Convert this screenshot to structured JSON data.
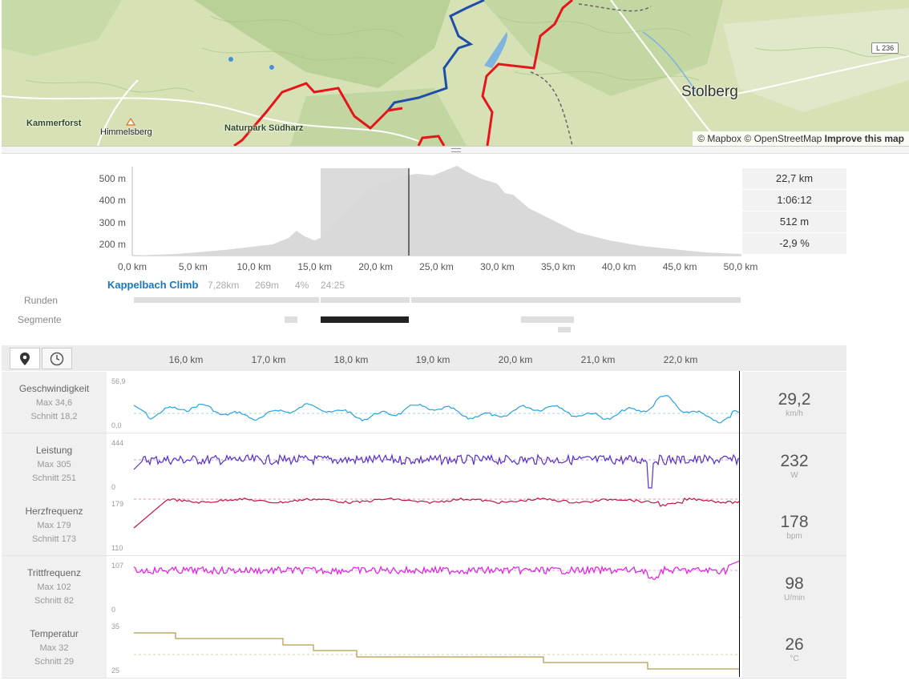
{
  "map": {
    "labels": {
      "kammerforst": "Kammerforst",
      "himmelsberg": "Himmelsberg",
      "naturpark": "Naturpark Südharz",
      "stolberg": "Stolberg",
      "road": "L 236"
    },
    "attribution": {
      "mapbox": "© Mapbox",
      "osm": "© OpenStreetMap",
      "improve": "Improve this map"
    },
    "colors": {
      "route": "#e8141b",
      "route_alt": "#1f4ea8",
      "water": "#7fb3e0",
      "land": "#d7e3b8"
    }
  },
  "elevation": {
    "y_ticks": [
      "500 m",
      "400 m",
      "300 m",
      "200 m"
    ],
    "x_ticks": [
      "0,0 km",
      "5,0 km",
      "10,0 km",
      "15,0 km",
      "20,0 km",
      "25,0 km",
      "30,0 km",
      "35,0 km",
      "40,0 km",
      "45,0 km",
      "50,0 km"
    ],
    "stats": {
      "distance": "22,7 km",
      "time": "1:06:12",
      "elevation": "512 m",
      "grade": "-2,9 %"
    },
    "selection_km": [
      15.0,
      22.7
    ],
    "fill_color": "#d9d9d9"
  },
  "segment": {
    "name": "Kappelbach Climb",
    "distance": "7,28km",
    "elevation": "269m",
    "grade": "4%",
    "time": "24:25"
  },
  "rows": {
    "laps": "Runden",
    "segments": "Segmente"
  },
  "toolbar": {
    "map_icon": "map-pin-icon",
    "time_icon": "clock-icon"
  },
  "detail_x_ticks": [
    "16,0 km",
    "17,0 km",
    "18,0 km",
    "19,0 km",
    "20,0 km",
    "21,0 km",
    "22,0 km"
  ],
  "channels": [
    {
      "title": "Geschwindigkeit",
      "max": "Max 34,6",
      "avg": "Schnitt 18,2",
      "value": "29,2",
      "unit": "km/h",
      "scale_max": "56,9",
      "scale_min": "0,0",
      "color": "#29a3dc"
    },
    {
      "title": "Leistung",
      "max": "Max 305",
      "avg": "Schnitt 251",
      "value": "232",
      "unit": "W",
      "scale_max": "444",
      "scale_min": "0",
      "color": "#5a2fc9"
    },
    {
      "title": "Herzfrequenz",
      "max": "Max 179",
      "avg": "Schnitt 173",
      "value": "178",
      "unit": "bpm",
      "scale_max": "179",
      "scale_min": "110",
      "color": "#c2124a"
    },
    {
      "title": "Trittfrequenz",
      "max": "Max 102",
      "avg": "Schnitt 82",
      "value": "98",
      "unit": "U/min",
      "scale_max": "107",
      "scale_min": "0",
      "color": "#e020e0"
    },
    {
      "title": "Temperatur",
      "max": "Max 32",
      "avg": "Schnitt 29",
      "value": "26",
      "unit": "°C",
      "scale_max": "35",
      "scale_min": "25",
      "color": "#b49a4a"
    }
  ]
}
